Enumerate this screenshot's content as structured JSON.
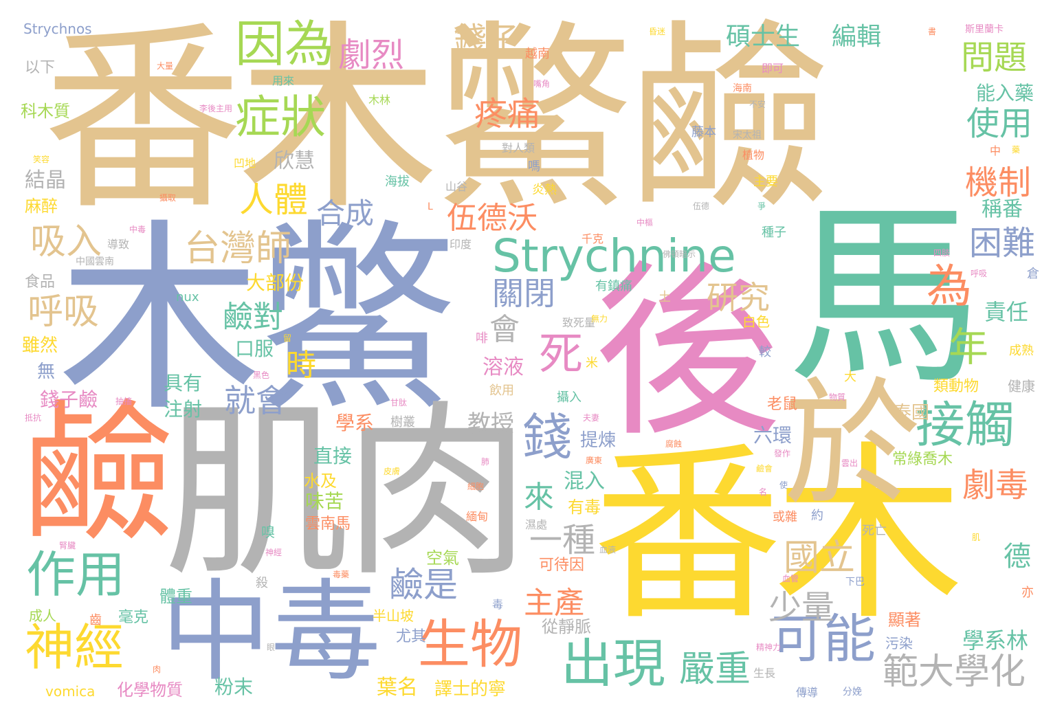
{
  "palette": {
    "tan": "#e3c48f",
    "blue": "#8d9fcb",
    "yellow": "#fdd930",
    "orange": "#fc8d62",
    "green": "#66c2a5",
    "pink": "#e78ac3",
    "lime": "#a6d854",
    "gray": "#b3b3b3"
  },
  "words": [
    {
      "text": "番木鱉鹼",
      "color": "tan"
    },
    {
      "text": "木鱉",
      "color": "blue"
    },
    {
      "text": "馬",
      "color": "green"
    },
    {
      "text": "後",
      "color": "pink"
    },
    {
      "text": "番木",
      "color": "yellow"
    },
    {
      "text": "肌肉",
      "color": "gray"
    },
    {
      "text": "鹼",
      "color": "orange"
    },
    {
      "text": "於",
      "color": "tan"
    },
    {
      "text": "中毒",
      "color": "blue"
    },
    {
      "text": "Strychnine",
      "color": "green"
    },
    {
      "text": "因為",
      "color": "lime"
    },
    {
      "text": "症狀",
      "color": "lime"
    },
    {
      "text": "劇烈",
      "color": "pink"
    },
    {
      "text": "錢子",
      "color": "tan"
    },
    {
      "text": "疼痛",
      "color": "orange"
    },
    {
      "text": "人體",
      "color": "yellow"
    },
    {
      "text": "台灣師",
      "color": "tan"
    },
    {
      "text": "合成",
      "color": "blue"
    },
    {
      "text": "吸入",
      "color": "tan"
    },
    {
      "text": "呼吸",
      "color": "tan"
    },
    {
      "text": "伍德沃",
      "color": "orange"
    },
    {
      "text": "為",
      "color": "orange"
    },
    {
      "text": "研究",
      "color": "tan"
    },
    {
      "text": "關閉",
      "color": "blue"
    },
    {
      "text": "鹼對",
      "color": "green"
    },
    {
      "text": "會",
      "color": "gray"
    },
    {
      "text": "死",
      "color": "pink"
    },
    {
      "text": "時",
      "color": "yellow"
    },
    {
      "text": "就會",
      "color": "blue"
    },
    {
      "text": "錢",
      "color": "blue"
    },
    {
      "text": "接觸",
      "color": "green"
    },
    {
      "text": "年",
      "color": "lime"
    },
    {
      "text": "困難",
      "color": "blue"
    },
    {
      "text": "機制",
      "color": "orange"
    },
    {
      "text": "使用",
      "color": "green"
    },
    {
      "text": "問題",
      "color": "lime"
    },
    {
      "text": "碩士生",
      "color": "green"
    },
    {
      "text": "編輯",
      "color": "green"
    },
    {
      "text": "作用",
      "color": "green"
    },
    {
      "text": "神經",
      "color": "yellow"
    },
    {
      "text": "生物",
      "color": "orange"
    },
    {
      "text": "出現",
      "color": "green"
    },
    {
      "text": "可能",
      "color": "blue"
    },
    {
      "text": "嚴重",
      "color": "green"
    },
    {
      "text": "範大學化",
      "color": "gray"
    },
    {
      "text": "國立",
      "color": "tan"
    },
    {
      "text": "少量",
      "color": "gray"
    },
    {
      "text": "劇毒",
      "color": "orange"
    },
    {
      "text": "一種",
      "color": "gray"
    },
    {
      "text": "鹼是",
      "color": "blue"
    },
    {
      "text": "主產",
      "color": "orange"
    },
    {
      "text": "來",
      "color": "green"
    },
    {
      "text": "德",
      "color": "green"
    },
    {
      "text": "責任",
      "color": "green"
    },
    {
      "text": "稱番",
      "color": "green"
    },
    {
      "text": "能入藥",
      "color": "green"
    },
    {
      "text": "學系林",
      "color": "green"
    },
    {
      "text": "教授",
      "color": "gray"
    },
    {
      "text": "欣慧",
      "color": "gray"
    },
    {
      "text": "結晶",
      "color": "gray"
    },
    {
      "text": "以下",
      "color": "gray"
    },
    {
      "text": "科木質",
      "color": "lime"
    },
    {
      "text": "麻醉",
      "color": "yellow"
    },
    {
      "text": "食品",
      "color": "gray"
    },
    {
      "text": "雖然",
      "color": "yellow"
    },
    {
      "text": "無",
      "color": "blue"
    },
    {
      "text": "錢子鹼",
      "color": "pink"
    },
    {
      "text": "具有",
      "color": "green"
    },
    {
      "text": "注射",
      "color": "green"
    },
    {
      "text": "口服",
      "color": "green"
    },
    {
      "text": "大部份",
      "color": "yellow"
    },
    {
      "text": "溶液",
      "color": "pink"
    },
    {
      "text": "學系",
      "color": "orange"
    },
    {
      "text": "直接",
      "color": "green"
    },
    {
      "text": "水及",
      "color": "yellow"
    },
    {
      "text": "味苦",
      "color": "lime"
    },
    {
      "text": "雲南馬",
      "color": "orange"
    },
    {
      "text": "混入",
      "color": "green"
    },
    {
      "text": "有毒",
      "color": "yellow"
    },
    {
      "text": "提煉",
      "color": "blue"
    },
    {
      "text": "六環",
      "color": "blue"
    },
    {
      "text": "老鼠",
      "color": "orange"
    },
    {
      "text": "泰國",
      "color": "tan"
    },
    {
      "text": "常綠喬木",
      "color": "lime"
    },
    {
      "text": "類動物",
      "color": "yellow"
    },
    {
      "text": "健康",
      "color": "gray"
    },
    {
      "text": "成熟",
      "color": "yellow"
    },
    {
      "text": "顯著",
      "color": "orange"
    },
    {
      "text": "污染",
      "color": "blue"
    },
    {
      "text": "從靜脈",
      "color": "gray"
    },
    {
      "text": "尤其",
      "color": "blue"
    },
    {
      "text": "半山坡",
      "color": "yellow"
    },
    {
      "text": "葉名",
      "color": "yellow"
    },
    {
      "text": "譯士的寧",
      "color": "yellow"
    },
    {
      "text": "粉末",
      "color": "green"
    },
    {
      "text": "化學物質",
      "color": "pink"
    },
    {
      "text": "毫克",
      "color": "green"
    },
    {
      "text": "成人",
      "color": "lime"
    },
    {
      "text": "空氣",
      "color": "lime"
    },
    {
      "text": "體重",
      "color": "green"
    },
    {
      "text": "可待因",
      "color": "orange"
    },
    {
      "text": "Strychnos",
      "color": "blue"
    },
    {
      "text": "nux",
      "color": "green"
    },
    {
      "text": "vomica",
      "color": "yellow"
    },
    {
      "text": "斯里蘭卡",
      "color": "pink"
    },
    {
      "text": "越南",
      "color": "orange"
    },
    {
      "text": "用來",
      "color": "green"
    },
    {
      "text": "木林",
      "color": "lime"
    },
    {
      "text": "對人類",
      "color": "gray"
    },
    {
      "text": "海拔",
      "color": "green"
    },
    {
      "text": "山谷",
      "color": "gray"
    },
    {
      "text": "凹地",
      "color": "yellow"
    },
    {
      "text": "印度",
      "color": "gray"
    },
    {
      "text": "導致",
      "color": "gray"
    },
    {
      "text": "中國雲南",
      "color": "gray"
    },
    {
      "text": "千克",
      "color": "orange"
    },
    {
      "text": "有鎮痛",
      "color": "green"
    },
    {
      "text": "致死量",
      "color": "gray"
    },
    {
      "text": "白色",
      "color": "yellow"
    },
    {
      "text": "種子",
      "color": "green"
    },
    {
      "text": "主要",
      "color": "yellow"
    },
    {
      "text": "植物",
      "color": "orange"
    },
    {
      "text": "藤本",
      "color": "blue"
    },
    {
      "text": "宋太祖",
      "color": "gray"
    },
    {
      "text": "即可",
      "color": "pink"
    },
    {
      "text": "海南",
      "color": "orange"
    },
    {
      "text": "不安",
      "color": "gray"
    },
    {
      "text": "嗎",
      "color": "blue"
    },
    {
      "text": "炎熱",
      "color": "yellow"
    },
    {
      "text": "倉",
      "color": "blue"
    },
    {
      "text": "大",
      "color": "yellow"
    },
    {
      "text": "土",
      "color": "tan"
    },
    {
      "text": "較",
      "color": "blue"
    },
    {
      "text": "米",
      "color": "yellow"
    },
    {
      "text": "啡",
      "color": "pink"
    },
    {
      "text": "飲用",
      "color": "tan"
    },
    {
      "text": "攝入",
      "color": "green"
    },
    {
      "text": "樹叢",
      "color": "gray"
    },
    {
      "text": "嗅",
      "color": "green"
    },
    {
      "text": "緬甸",
      "color": "orange"
    },
    {
      "text": "濕處",
      "color": "gray"
    },
    {
      "text": "或雜",
      "color": "orange"
    },
    {
      "text": "約",
      "color": "blue"
    },
    {
      "text": "死亡",
      "color": "gray"
    },
    {
      "text": "殺",
      "color": "gray"
    },
    {
      "text": "齒",
      "color": "orange"
    },
    {
      "text": "毒",
      "color": "blue"
    },
    {
      "text": "生長",
      "color": "gray"
    },
    {
      "text": "傳導",
      "color": "blue"
    },
    {
      "text": "分娩",
      "color": "blue"
    },
    {
      "text": "亦",
      "color": "orange"
    },
    {
      "text": "下巴",
      "color": "blue"
    },
    {
      "text": "中",
      "color": "orange"
    },
    {
      "text": "L",
      "color": "orange"
    },
    {
      "text": "大量",
      "color": "orange"
    },
    {
      "text": "嘴角",
      "color": "pink"
    },
    {
      "text": "李後主用",
      "color": "pink"
    },
    {
      "text": "笑容",
      "color": "yellow"
    },
    {
      "text": "攝取",
      "color": "orange"
    },
    {
      "text": "中毒",
      "color": "pink"
    },
    {
      "text": "昏迷",
      "color": "yellow"
    },
    {
      "text": "中樞",
      "color": "pink"
    },
    {
      "text": "佛頓暗示",
      "color": "gray"
    },
    {
      "text": "伍德",
      "color": "gray"
    },
    {
      "text": "四肢",
      "color": "pink"
    },
    {
      "text": "呼吸",
      "color": "pink"
    },
    {
      "text": "爭",
      "color": "green"
    },
    {
      "text": "書",
      "color": "orange"
    },
    {
      "text": "無力",
      "color": "yellow"
    },
    {
      "text": "黑色",
      "color": "pink"
    },
    {
      "text": "抽搐",
      "color": "pink"
    },
    {
      "text": "抵抗",
      "color": "pink"
    },
    {
      "text": "甘肽",
      "color": "pink"
    },
    {
      "text": "夫妻",
      "color": "pink"
    },
    {
      "text": "廣東",
      "color": "orange"
    },
    {
      "text": "發作",
      "color": "pink"
    },
    {
      "text": "肺",
      "color": "pink"
    },
    {
      "text": "皮膚",
      "color": "yellow"
    },
    {
      "text": "細胞",
      "color": "orange"
    },
    {
      "text": "血液",
      "color": "gray"
    },
    {
      "text": "肉",
      "color": "orange"
    },
    {
      "text": "毒藥",
      "color": "orange"
    },
    {
      "text": "神經",
      "color": "pink"
    },
    {
      "text": "物質",
      "color": "pink"
    },
    {
      "text": "血管",
      "color": "pink"
    },
    {
      "text": "精神力",
      "color": "pink"
    },
    {
      "text": "眼",
      "color": "gray"
    },
    {
      "text": "肌",
      "color": "yellow"
    },
    {
      "text": "雲出",
      "color": "pink"
    },
    {
      "text": "使",
      "color": "blue"
    },
    {
      "text": "名",
      "color": "pink"
    },
    {
      "text": "藥",
      "color": "yellow"
    },
    {
      "text": "鹼會",
      "color": "yellow"
    },
    {
      "text": "留",
      "color": "yellow"
    },
    {
      "text": "腎臟",
      "color": "pink"
    },
    {
      "text": "腐蝕",
      "color": "orange"
    },
    {
      "text": "木",
      "color": "lime"
    }
  ]
}
